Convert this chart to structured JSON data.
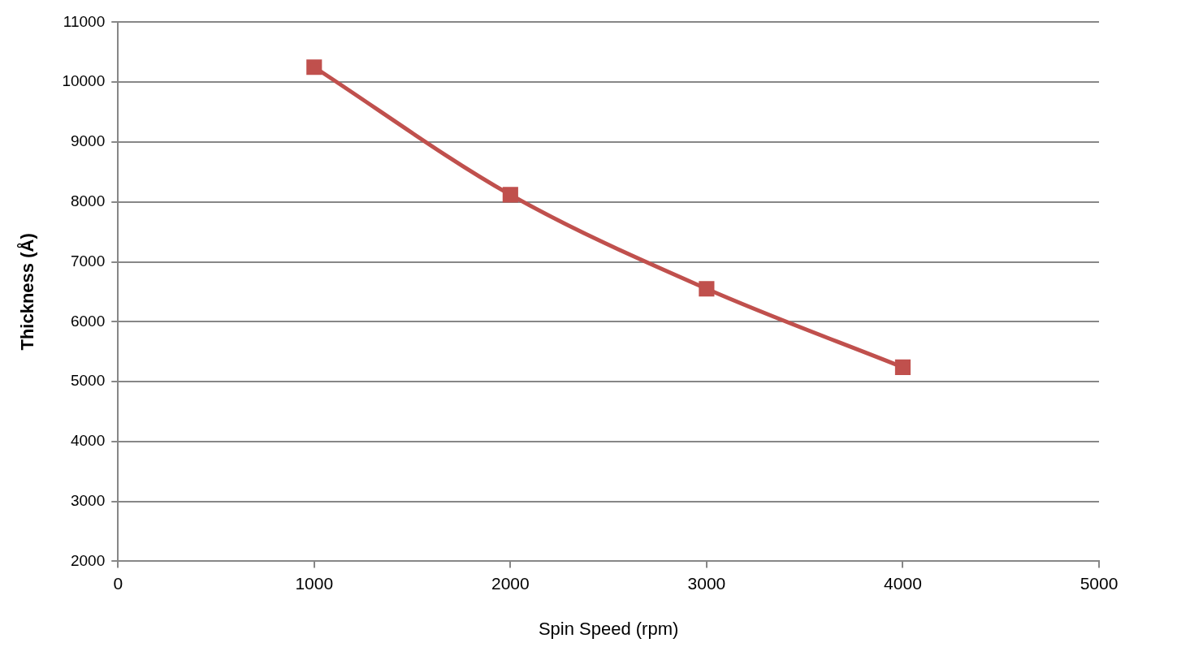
{
  "chart_data": {
    "type": "line",
    "xlabel": "Spin Speed (rpm)",
    "ylabel": "Thickness (Å)",
    "x": [
      1000,
      2000,
      3000,
      4000
    ],
    "series": [
      {
        "color": "#c0504d",
        "values": [
          10250,
          8120,
          6550,
          5240
        ]
      }
    ],
    "xlim": [
      0,
      5000
    ],
    "xticks": [
      0,
      1000,
      2000,
      3000,
      4000,
      5000
    ],
    "ylim": [
      2000,
      11000
    ],
    "yticks": [
      2000,
      3000,
      4000,
      5000,
      6000,
      7000,
      8000,
      9000,
      10000,
      11000
    ],
    "grid": "y",
    "legend": false,
    "marker": "square",
    "line_style": "solid"
  }
}
